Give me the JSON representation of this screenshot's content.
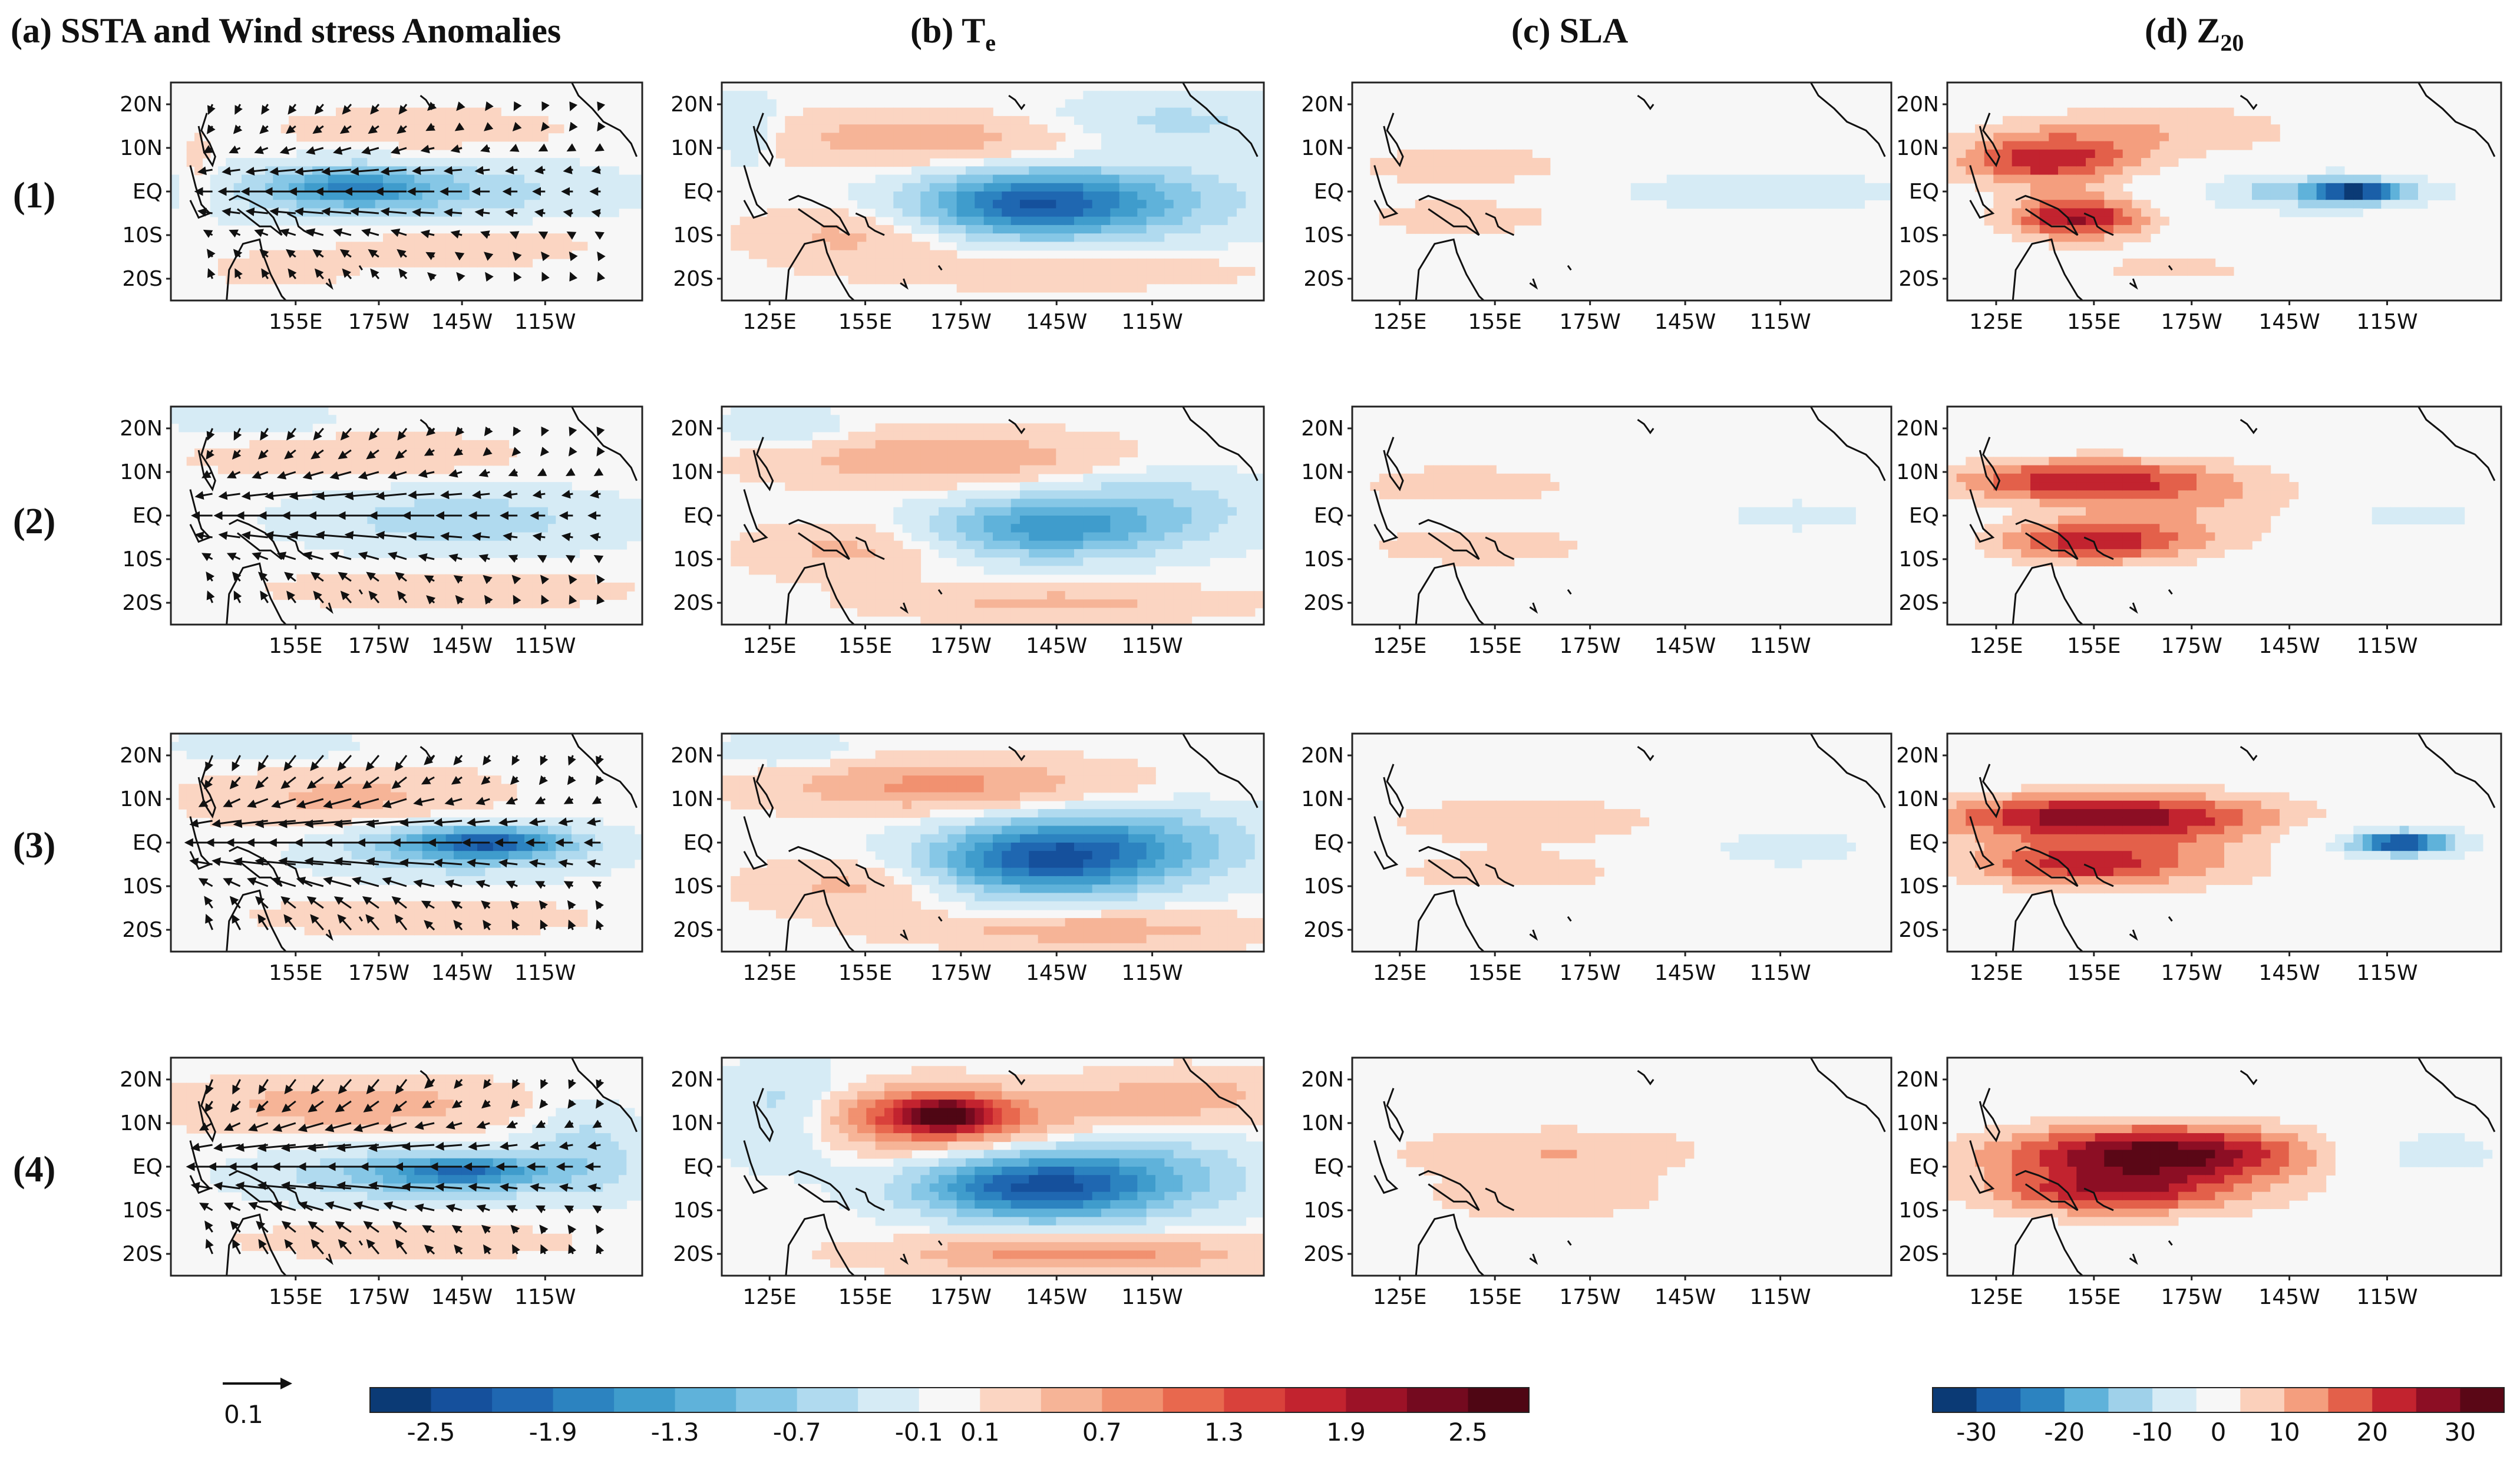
{
  "figure": {
    "column_titles": [
      {
        "prefix": "(a) ",
        "text": "SSTA and Wind stress Anomalies",
        "sub": ""
      },
      {
        "prefix": "(b) ",
        "text": "T",
        "sub": "e"
      },
      {
        "prefix": "(c) ",
        "text": "SLA",
        "sub": ""
      },
      {
        "prefix": "(d) ",
        "text": "Z",
        "sub": "20"
      }
    ],
    "row_labels": [
      "(1)",
      "(2)",
      "(3)",
      "(4)"
    ],
    "vector_key_label": "0.1"
  },
  "chart_data": {
    "type": "heatmap",
    "description_grid": "4 rows x 4 columns of tropical Pacific anomaly maps",
    "x_axis": {
      "unit": "longitude",
      "lon_range_deg_east": [
        110,
        280
      ],
      "tick_labels_a": [
        "155E",
        "175W",
        "145W",
        "115W"
      ],
      "tick_values_a": [
        155,
        185,
        215,
        245
      ],
      "tick_labels_bcd": [
        "125E",
        "155E",
        "175W",
        "145W",
        "115W"
      ],
      "tick_values_bcd": [
        125,
        155,
        185,
        215,
        245
      ]
    },
    "y_axis": {
      "unit": "latitude",
      "lat_range": [
        -25,
        25
      ],
      "tick_labels": [
        "20N",
        "10N",
        "EQ",
        "10S",
        "20S"
      ],
      "tick_values": [
        20,
        10,
        0,
        -10,
        -20
      ]
    },
    "colorbar_left": {
      "variable": "SSTA / Te",
      "levels": [
        -2.5,
        -2.2,
        -1.9,
        -1.6,
        -1.3,
        -1.0,
        -0.7,
        -0.4,
        -0.1,
        0.1,
        0.4,
        0.7,
        1.0,
        1.3,
        1.6,
        1.9,
        2.2,
        2.5
      ],
      "colors": [
        "#0b3a75",
        "#15509c",
        "#1f67b1",
        "#2c83c0",
        "#3f9ccc",
        "#5fb2da",
        "#86c7e6",
        "#b0daef",
        "#d6ebf5",
        "#f7f7f7",
        "#fbd5c2",
        "#f6b497",
        "#f19170",
        "#e8684e",
        "#d9413b",
        "#c2232f",
        "#9c1227",
        "#740a1f",
        "#4f0614"
      ],
      "tick_labels": [
        "-2.5",
        "-1.9",
        "-1.3",
        "-0.7",
        "-0.1",
        "0.1",
        "0.7",
        "1.3",
        "1.9",
        "2.5"
      ],
      "tick_values": [
        -2.5,
        -1.9,
        -1.3,
        -0.7,
        -0.1,
        0.1,
        0.7,
        1.3,
        1.9,
        2.5
      ]
    },
    "colorbar_right": {
      "variable": "SLA / Z20",
      "levels": [
        -30,
        -25,
        -20,
        -15,
        -10,
        -5,
        5,
        10,
        15,
        20,
        25,
        30
      ],
      "colors": [
        "#0b3a75",
        "#1a5fa8",
        "#2c83c0",
        "#5fb2da",
        "#9fd1ea",
        "#d6ebf5",
        "#f7f7f7",
        "#fbd0bb",
        "#f49e7e",
        "#e3604a",
        "#c2232f",
        "#8c0e24",
        "#5a0716"
      ],
      "tick_labels": [
        "-30",
        "-20",
        "-10",
        "0",
        "10",
        "20",
        "30"
      ],
      "tick_values": [
        -30,
        -20,
        -10,
        0,
        10,
        20,
        30
      ]
    },
    "vector_reference_magnitude": 0.1,
    "panels": [
      {
        "row": 1,
        "col": "a",
        "blobs": [
          {
            "lon": 190,
            "lat": 0,
            "rlon": 65,
            "rlat": 7,
            "v": -0.8
          },
          {
            "lon": 175,
            "lat": 1,
            "rlon": 25,
            "rlat": 4,
            "v": -1.0
          },
          {
            "lon": 200,
            "lat": 14,
            "rlon": 50,
            "rlat": 5,
            "v": 0.3
          },
          {
            "lon": 215,
            "lat": -12,
            "rlon": 45,
            "rlat": 5,
            "v": 0.3
          },
          {
            "lon": 150,
            "lat": -18,
            "rlon": 25,
            "rlat": 4,
            "v": 0.25
          },
          {
            "lon": 120,
            "lat": 2,
            "rlon": 6,
            "rlat": 10,
            "v": 0.3
          }
        ],
        "wind": {
          "sign": -1,
          "mag": 1.0
        }
      },
      {
        "row": 1,
        "col": "b",
        "blobs": [
          {
            "lon": 205,
            "lat": -3,
            "rlon": 35,
            "rlat": 7,
            "v": -1.7
          },
          {
            "lon": 235,
            "lat": -2,
            "rlon": 45,
            "rlat": 9,
            "v": -0.8
          },
          {
            "lon": 250,
            "lat": 16,
            "rlon": 40,
            "rlat": 6,
            "v": -0.5
          },
          {
            "lon": 175,
            "lat": 12,
            "rlon": 55,
            "rlat": 6,
            "v": 0.6
          },
          {
            "lon": 150,
            "lat": -10,
            "rlon": 30,
            "rlat": 6,
            "v": 0.5
          },
          {
            "lon": 215,
            "lat": -18,
            "rlon": 55,
            "rlat": 4,
            "v": 0.4
          },
          {
            "lon": 118,
            "lat": 14,
            "rlon": 10,
            "rlat": 8,
            "v": -0.5
          }
        ]
      },
      {
        "row": 1,
        "col": "c",
        "blobs": [
          {
            "lon": 145,
            "lat": 6,
            "rlon": 40,
            "rlat": 5,
            "v": 9
          },
          {
            "lon": 145,
            "lat": -6,
            "rlon": 40,
            "rlat": 5,
            "v": 8
          },
          {
            "lon": 225,
            "lat": 0,
            "rlon": 40,
            "rlat": 5,
            "v": -9
          },
          {
            "lon": 265,
            "lat": 0,
            "rlon": 20,
            "rlat": 4,
            "v": -6
          }
        ]
      },
      {
        "row": 1,
        "col": "d",
        "blobs": [
          {
            "lon": 140,
            "lat": 7,
            "rlon": 28,
            "rlat": 6,
            "v": 22
          },
          {
            "lon": 150,
            "lat": -6,
            "rlon": 22,
            "rlat": 5,
            "v": 26
          },
          {
            "lon": 175,
            "lat": 14,
            "rlon": 50,
            "rlat": 7,
            "v": 9
          },
          {
            "lon": 180,
            "lat": -18,
            "rlon": 45,
            "rlat": 5,
            "v": 6
          },
          {
            "lon": 225,
            "lat": 0,
            "rlon": 40,
            "rlat": 5,
            "v": -14
          },
          {
            "lon": 235,
            "lat": 0,
            "rlon": 12,
            "rlat": 2,
            "v": -24
          }
        ]
      },
      {
        "row": 2,
        "col": "a",
        "blobs": [
          {
            "lon": 215,
            "lat": -1,
            "rlon": 55,
            "rlat": 7,
            "v": -0.6
          },
          {
            "lon": 175,
            "lat": 14,
            "rlon": 55,
            "rlat": 5,
            "v": 0.35
          },
          {
            "lon": 210,
            "lat": -17,
            "rlon": 60,
            "rlat": 4,
            "v": 0.35
          },
          {
            "lon": 140,
            "lat": 22,
            "rlon": 30,
            "rlat": 5,
            "v": -0.3
          }
        ],
        "wind": {
          "sign": -1,
          "mag": 1.2
        }
      },
      {
        "row": 2,
        "col": "b",
        "blobs": [
          {
            "lon": 210,
            "lat": -3,
            "rlon": 35,
            "rlat": 7,
            "v": -1.3
          },
          {
            "lon": 245,
            "lat": 2,
            "rlon": 35,
            "rlat": 9,
            "v": -0.6
          },
          {
            "lon": 180,
            "lat": 13,
            "rlon": 55,
            "rlat": 6,
            "v": 0.7
          },
          {
            "lon": 150,
            "lat": -8,
            "rlon": 30,
            "rlat": 6,
            "v": 0.5
          },
          {
            "lon": 215,
            "lat": -20,
            "rlon": 55,
            "rlat": 4,
            "v": 0.5
          },
          {
            "lon": 130,
            "lat": 20,
            "rlon": 20,
            "rlat": 5,
            "v": -0.4
          }
        ]
      },
      {
        "row": 2,
        "col": "c",
        "blobs": [
          {
            "lon": 145,
            "lat": 7,
            "rlon": 40,
            "rlat": 5,
            "v": 9
          },
          {
            "lon": 150,
            "lat": -7,
            "rlon": 40,
            "rlat": 5,
            "v": 9
          },
          {
            "lon": 250,
            "lat": 0,
            "rlon": 35,
            "rlat": 5,
            "v": -7
          },
          {
            "lon": 215,
            "lat": 18,
            "rlon": 30,
            "rlat": 4,
            "v": -4
          }
        ]
      },
      {
        "row": 2,
        "col": "d",
        "blobs": [
          {
            "lon": 150,
            "lat": 8,
            "rlon": 40,
            "rlat": 5,
            "v": 22
          },
          {
            "lon": 155,
            "lat": -6,
            "rlon": 30,
            "rlat": 5,
            "v": 22
          },
          {
            "lon": 190,
            "lat": 2,
            "rlon": 45,
            "rlat": 10,
            "v": 8
          },
          {
            "lon": 250,
            "lat": 0,
            "rlon": 30,
            "rlat": 5,
            "v": -8
          }
        ]
      },
      {
        "row": 3,
        "col": "a",
        "blobs": [
          {
            "lon": 215,
            "lat": -1,
            "rlon": 45,
            "rlat": 6,
            "v": -1.0
          },
          {
            "lon": 225,
            "lat": 0,
            "rlon": 25,
            "rlat": 3,
            "v": -1.4
          },
          {
            "lon": 175,
            "lat": 10,
            "rlon": 50,
            "rlat": 7,
            "v": 0.5
          },
          {
            "lon": 200,
            "lat": -17,
            "rlon": 55,
            "rlat": 4,
            "v": 0.35
          },
          {
            "lon": 145,
            "lat": 22,
            "rlon": 35,
            "rlat": 4,
            "v": -0.3
          }
        ],
        "wind": {
          "sign": -1,
          "mag": 1.6
        }
      },
      {
        "row": 3,
        "col": "b",
        "blobs": [
          {
            "lon": 210,
            "lat": -4,
            "rlon": 35,
            "rlat": 8,
            "v": -1.9
          },
          {
            "lon": 240,
            "lat": 0,
            "rlon": 40,
            "rlat": 9,
            "v": -0.9
          },
          {
            "lon": 180,
            "lat": 13,
            "rlon": 55,
            "rlat": 6,
            "v": 0.8
          },
          {
            "lon": 150,
            "lat": -10,
            "rlon": 30,
            "rlat": 6,
            "v": 0.5
          },
          {
            "lon": 225,
            "lat": -20,
            "rlon": 55,
            "rlat": 4,
            "v": 0.6
          },
          {
            "lon": 130,
            "lat": 21,
            "rlon": 20,
            "rlat": 4,
            "v": -0.4
          }
        ]
      },
      {
        "row": 3,
        "col": "c",
        "blobs": [
          {
            "lon": 165,
            "lat": 5,
            "rlon": 55,
            "rlat": 6,
            "v": 9
          },
          {
            "lon": 160,
            "lat": -7,
            "rlon": 45,
            "rlat": 5,
            "v": 8
          },
          {
            "lon": 245,
            "lat": -1,
            "rlon": 35,
            "rlat": 6,
            "v": -8
          },
          {
            "lon": 215,
            "lat": 16,
            "rlon": 30,
            "rlat": 4,
            "v": -4
          }
        ]
      },
      {
        "row": 3,
        "col": "d",
        "blobs": [
          {
            "lon": 155,
            "lat": 6,
            "rlon": 50,
            "rlat": 5,
            "v": 24
          },
          {
            "lon": 150,
            "lat": -5,
            "rlon": 35,
            "rlat": 5,
            "v": 18
          },
          {
            "lon": 180,
            "lat": 0,
            "rlon": 60,
            "rlat": 12,
            "v": 8
          },
          {
            "lon": 245,
            "lat": 0,
            "rlon": 30,
            "rlat": 5,
            "v": -14
          },
          {
            "lon": 250,
            "lat": 0,
            "rlon": 12,
            "rlat": 2,
            "v": -22
          }
        ]
      },
      {
        "row": 4,
        "col": "a",
        "blobs": [
          {
            "lon": 205,
            "lat": -2,
            "rlon": 55,
            "rlat": 6,
            "v": -0.9
          },
          {
            "lon": 215,
            "lat": -1,
            "rlon": 25,
            "rlat": 3,
            "v": -1.2
          },
          {
            "lon": 175,
            "lat": 14,
            "rlon": 60,
            "rlat": 6,
            "v": 0.6
          },
          {
            "lon": 195,
            "lat": -17,
            "rlon": 60,
            "rlat": 4,
            "v": 0.3
          },
          {
            "lon": 260,
            "lat": 5,
            "rlon": 20,
            "rlat": 10,
            "v": -0.5
          }
        ],
        "wind": {
          "sign": -1,
          "mag": 1.5
        }
      },
      {
        "row": 4,
        "col": "b",
        "blobs": [
          {
            "lon": 205,
            "lat": -5,
            "rlon": 35,
            "rlat": 7,
            "v": -1.8
          },
          {
            "lon": 235,
            "lat": -2,
            "rlon": 40,
            "rlat": 9,
            "v": -1.0
          },
          {
            "lon": 175,
            "lat": 11,
            "rlon": 45,
            "rlat": 7,
            "v": 1.3
          },
          {
            "lon": 180,
            "lat": 12,
            "rlon": 15,
            "rlat": 4,
            "v": 1.8
          },
          {
            "lon": 130,
            "lat": 12,
            "rlon": 20,
            "rlat": 10,
            "v": -0.8
          },
          {
            "lon": 220,
            "lat": -20,
            "rlon": 55,
            "rlat": 4,
            "v": 0.9
          },
          {
            "lon": 255,
            "lat": 16,
            "rlon": 30,
            "rlat": 6,
            "v": 0.6
          }
        ]
      },
      {
        "row": 4,
        "col": "c",
        "blobs": [
          {
            "lon": 175,
            "lat": 3,
            "rlon": 60,
            "rlat": 7,
            "v": 10
          },
          {
            "lon": 170,
            "lat": -8,
            "rlon": 45,
            "rlat": 5,
            "v": 8
          },
          {
            "lon": 185,
            "lat": 14,
            "rlon": 60,
            "rlat": 3,
            "v": -4
          },
          {
            "lon": 255,
            "lat": 0,
            "rlon": 30,
            "rlat": 5,
            "v": -6
          }
        ]
      },
      {
        "row": 4,
        "col": "d",
        "blobs": [
          {
            "lon": 175,
            "lat": 3,
            "rlon": 45,
            "rlat": 6,
            "v": 26
          },
          {
            "lon": 160,
            "lat": -6,
            "rlon": 35,
            "rlat": 5,
            "v": 18
          },
          {
            "lon": 175,
            "lat": 0,
            "rlon": 70,
            "rlat": 12,
            "v": 8
          },
          {
            "lon": 255,
            "lat": 3,
            "rlon": 30,
            "rlat": 7,
            "v": -10
          }
        ]
      }
    ]
  }
}
